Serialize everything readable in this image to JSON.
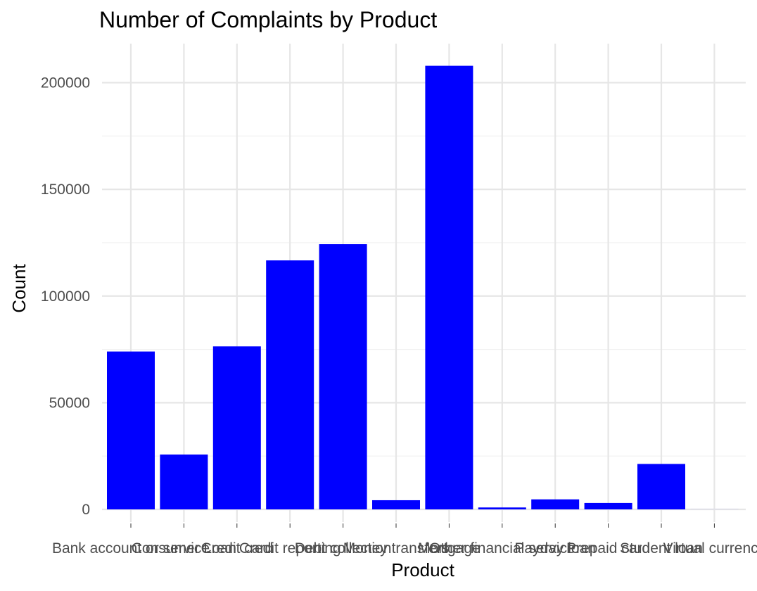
{
  "chart_data": {
    "type": "bar",
    "title": "Number of Complaints by Product",
    "xlabel": "Product",
    "ylabel": "Count",
    "categories": [
      "Bank account or service",
      "Consumer Loan",
      "Credit card",
      "Credit reporting",
      "Debt collection",
      "Money transfers",
      "Mortgage",
      "Other financial service",
      "Payday loan",
      "Prepaid card",
      "Student loan",
      "Virtual currency"
    ],
    "values": [
      74000,
      25700,
      76400,
      116700,
      124300,
      4300,
      207900,
      900,
      4700,
      3000,
      21300,
      20
    ],
    "ylim": [
      0,
      210000
    ],
    "yticks": [
      0,
      50000,
      100000,
      150000,
      200000
    ],
    "bar_color": "#0000ff",
    "grid": true
  }
}
